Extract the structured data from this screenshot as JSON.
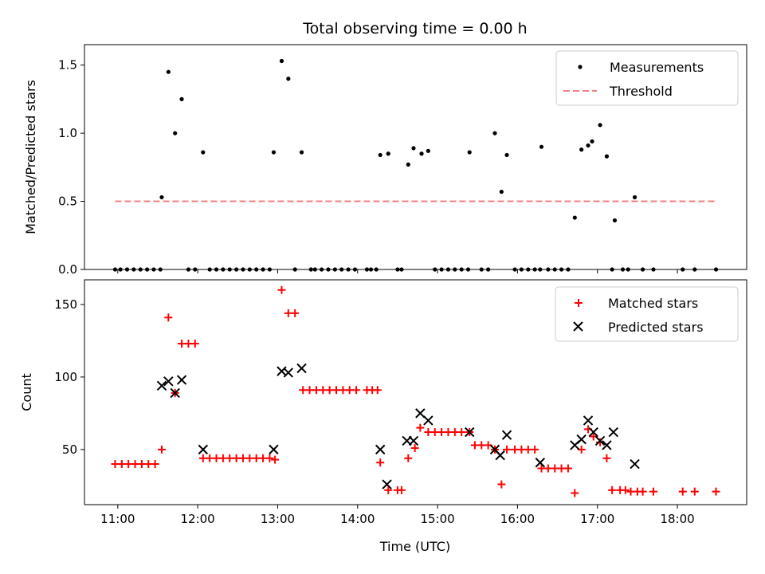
{
  "figure": {
    "title": "Total observing time = 0.00 h",
    "xlabel": "Time (UTC)"
  },
  "colors": {
    "measurement": "#000000",
    "threshold": "#f08080",
    "matched": "#ff0000",
    "predicted": "#000000"
  },
  "chart_data": [
    {
      "type": "scatter",
      "ylabel": "Matched/Predicted stars",
      "xlim": [
        "10:35",
        "18:52"
      ],
      "ylim": [
        0,
        1.65
      ],
      "yticks": [
        0.0,
        0.5,
        1.0,
        1.5
      ],
      "ytick_labels": [
        "0.0",
        "0.5",
        "1.0",
        "1.5"
      ],
      "legend_position": "upper right",
      "legend": [
        {
          "label": "Measurements",
          "marker": "dot"
        },
        {
          "label": "Threshold",
          "marker": "dashed-line"
        }
      ],
      "threshold": {
        "value": 0.5,
        "x_start": "10:58",
        "x_end": "18:30"
      },
      "series": [
        {
          "name": "Measurements",
          "points": [
            [
              "10:58",
              0
            ],
            [
              "11:02",
              0
            ],
            [
              "11:07",
              0
            ],
            [
              "11:12",
              0
            ],
            [
              "11:17",
              0
            ],
            [
              "11:22",
              0
            ],
            [
              "11:27",
              0
            ],
            [
              "11:32",
              0
            ],
            [
              "11:33",
              0.53
            ],
            [
              "11:38",
              1.45
            ],
            [
              "11:43",
              1.0
            ],
            [
              "11:48",
              1.25
            ],
            [
              "11:53",
              0
            ],
            [
              "11:58",
              0
            ],
            [
              "12:04",
              0.86
            ],
            [
              "12:09",
              0
            ],
            [
              "12:14",
              0
            ],
            [
              "12:19",
              0
            ],
            [
              "12:24",
              0
            ],
            [
              "12:29",
              0
            ],
            [
              "12:34",
              0
            ],
            [
              "12:39",
              0
            ],
            [
              "12:44",
              0
            ],
            [
              "12:49",
              0
            ],
            [
              "12:54",
              0
            ],
            [
              "12:57",
              0.86
            ],
            [
              "13:03",
              1.53
            ],
            [
              "13:08",
              1.4
            ],
            [
              "13:13",
              0
            ],
            [
              "13:18",
              0.86
            ],
            [
              "13:25",
              0
            ],
            [
              "13:28",
              0
            ],
            [
              "13:33",
              0
            ],
            [
              "13:38",
              0
            ],
            [
              "13:43",
              0
            ],
            [
              "13:48",
              0
            ],
            [
              "13:53",
              0
            ],
            [
              "13:58",
              0
            ],
            [
              "14:07",
              0
            ],
            [
              "14:10",
              0
            ],
            [
              "14:14",
              0
            ],
            [
              "14:17",
              0.84
            ],
            [
              "14:23",
              0.85
            ],
            [
              "14:30",
              0
            ],
            [
              "14:33",
              0
            ],
            [
              "14:38",
              0.77
            ],
            [
              "14:42",
              0.89
            ],
            [
              "14:48",
              0.85
            ],
            [
              "14:53",
              0.87
            ],
            [
              "14:58",
              0
            ],
            [
              "15:03",
              0
            ],
            [
              "15:08",
              0
            ],
            [
              "15:13",
              0
            ],
            [
              "15:18",
              0
            ],
            [
              "15:23",
              0
            ],
            [
              "15:24",
              0.86
            ],
            [
              "15:33",
              0
            ],
            [
              "15:38",
              0
            ],
            [
              "15:43",
              1.0
            ],
            [
              "15:48",
              0.57
            ],
            [
              "15:52",
              0.84
            ],
            [
              "15:58",
              0
            ],
            [
              "16:03",
              0
            ],
            [
              "16:08",
              0
            ],
            [
              "16:13",
              0
            ],
            [
              "16:17",
              0
            ],
            [
              "16:18",
              0.9
            ],
            [
              "16:23",
              0
            ],
            [
              "16:28",
              0
            ],
            [
              "16:33",
              0
            ],
            [
              "16:38",
              0
            ],
            [
              "16:43",
              0.38
            ],
            [
              "16:48",
              0.88
            ],
            [
              "16:53",
              0.91
            ],
            [
              "16:56",
              0.94
            ],
            [
              "17:02",
              1.06
            ],
            [
              "17:07",
              0.83
            ],
            [
              "17:11",
              0
            ],
            [
              "17:13",
              0.36
            ],
            [
              "17:19",
              0
            ],
            [
              "17:23",
              0
            ],
            [
              "17:28",
              0.53
            ],
            [
              "17:34",
              0
            ],
            [
              "17:42",
              0
            ],
            [
              "18:04",
              0
            ],
            [
              "18:13",
              0
            ],
            [
              "18:29",
              0
            ]
          ]
        }
      ]
    },
    {
      "type": "scatter",
      "ylabel": "Count",
      "xlim": [
        "10:35",
        "18:52"
      ],
      "ylim": [
        12,
        167
      ],
      "yticks": [
        50,
        100,
        150
      ],
      "ytick_labels": [
        "50",
        "100",
        "150"
      ],
      "xticks": [
        "11:00",
        "12:00",
        "13:00",
        "14:00",
        "15:00",
        "16:00",
        "17:00",
        "18:00"
      ],
      "xtick_labels": [
        "11:00",
        "12:00",
        "13:00",
        "14:00",
        "15:00",
        "16:00",
        "17:00",
        "18:00"
      ],
      "legend_position": "upper right",
      "legend": [
        {
          "label": "Matched stars",
          "marker": "plus"
        },
        {
          "label": "Predicted stars",
          "marker": "x"
        }
      ],
      "series": [
        {
          "name": "Matched stars",
          "points": [
            [
              "10:58",
              40
            ],
            [
              "11:03",
              40
            ],
            [
              "11:08",
              40
            ],
            [
              "11:13",
              40
            ],
            [
              "11:18",
              40
            ],
            [
              "11:23",
              40
            ],
            [
              "11:28",
              40
            ],
            [
              "11:33",
              50
            ],
            [
              "11:38",
              141
            ],
            [
              "11:43",
              89
            ],
            [
              "11:48",
              123
            ],
            [
              "11:53",
              123
            ],
            [
              "11:58",
              123
            ],
            [
              "12:04",
              44
            ],
            [
              "12:09",
              44
            ],
            [
              "12:14",
              44
            ],
            [
              "12:19",
              44
            ],
            [
              "12:24",
              44
            ],
            [
              "12:29",
              44
            ],
            [
              "12:34",
              44
            ],
            [
              "12:39",
              44
            ],
            [
              "12:44",
              44
            ],
            [
              "12:49",
              44
            ],
            [
              "12:54",
              44
            ],
            [
              "12:58",
              43
            ],
            [
              "13:03",
              160
            ],
            [
              "13:08",
              144
            ],
            [
              "13:13",
              144
            ],
            [
              "13:19",
              91
            ],
            [
              "13:24",
              91
            ],
            [
              "13:29",
              91
            ],
            [
              "13:34",
              91
            ],
            [
              "13:39",
              91
            ],
            [
              "13:44",
              91
            ],
            [
              "13:49",
              91
            ],
            [
              "13:54",
              91
            ],
            [
              "13:59",
              91
            ],
            [
              "14:07",
              91
            ],
            [
              "14:11",
              91
            ],
            [
              "14:15",
              91
            ],
            [
              "14:17",
              41
            ],
            [
              "14:23",
              22
            ],
            [
              "14:30",
              22
            ],
            [
              "14:33",
              22
            ],
            [
              "14:38",
              44
            ],
            [
              "14:43",
              51
            ],
            [
              "14:47",
              65
            ],
            [
              "14:53",
              62
            ],
            [
              "14:58",
              62
            ],
            [
              "15:03",
              62
            ],
            [
              "15:08",
              62
            ],
            [
              "15:13",
              62
            ],
            [
              "15:18",
              62
            ],
            [
              "15:24",
              62
            ],
            [
              "15:28",
              53
            ],
            [
              "15:33",
              53
            ],
            [
              "15:38",
              53
            ],
            [
              "15:43",
              50
            ],
            [
              "15:48",
              26
            ],
            [
              "15:52",
              50
            ],
            [
              "15:58",
              50
            ],
            [
              "16:03",
              50
            ],
            [
              "16:08",
              50
            ],
            [
              "16:13",
              50
            ],
            [
              "16:18",
              37
            ],
            [
              "16:23",
              37
            ],
            [
              "16:28",
              37
            ],
            [
              "16:33",
              37
            ],
            [
              "16:38",
              37
            ],
            [
              "16:43",
              20
            ],
            [
              "16:48",
              50
            ],
            [
              "16:53",
              64
            ],
            [
              "16:57",
              59
            ],
            [
              "17:02",
              55
            ],
            [
              "17:07",
              44
            ],
            [
              "17:11",
              22
            ],
            [
              "17:17",
              22
            ],
            [
              "17:21",
              22
            ],
            [
              "17:25",
              21
            ],
            [
              "17:30",
              21
            ],
            [
              "17:34",
              21
            ],
            [
              "17:42",
              21
            ],
            [
              "18:04",
              21
            ],
            [
              "18:13",
              21
            ],
            [
              "18:29",
              21
            ]
          ]
        },
        {
          "name": "Predicted stars",
          "points": [
            [
              "11:33",
              94
            ],
            [
              "11:38",
              97
            ],
            [
              "11:43",
              89
            ],
            [
              "11:48",
              98
            ],
            [
              "12:04",
              50
            ],
            [
              "12:57",
              50
            ],
            [
              "13:03",
              104
            ],
            [
              "13:08",
              103
            ],
            [
              "13:18",
              106
            ],
            [
              "14:17",
              50
            ],
            [
              "14:22",
              26
            ],
            [
              "14:37",
              56
            ],
            [
              "14:42",
              56
            ],
            [
              "14:47",
              75
            ],
            [
              "14:53",
              70
            ],
            [
              "15:24",
              62
            ],
            [
              "15:43",
              50
            ],
            [
              "15:47",
              46
            ],
            [
              "15:52",
              60
            ],
            [
              "16:17",
              41
            ],
            [
              "16:43",
              53
            ],
            [
              "16:48",
              57
            ],
            [
              "16:53",
              70
            ],
            [
              "16:57",
              62
            ],
            [
              "17:02",
              56
            ],
            [
              "17:07",
              53
            ],
            [
              "17:12",
              62
            ],
            [
              "17:28",
              40
            ]
          ]
        }
      ]
    }
  ]
}
